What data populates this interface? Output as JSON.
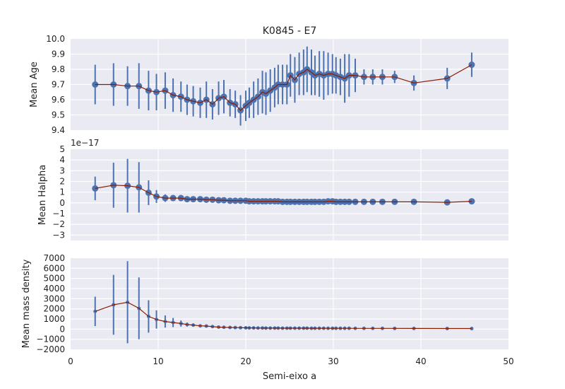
{
  "figure": {
    "title": "K0845 - E7",
    "xlabel": "Semi-eixo a",
    "xticks": [
      "0",
      "10",
      "20",
      "30",
      "40",
      "50"
    ]
  },
  "colors": {
    "panel_bg": "#EAEAF2",
    "grid": "#FFFFFF",
    "points": "#4C72B0",
    "line": "#8B1A00"
  },
  "chart_data": [
    {
      "type": "scatter",
      "ylabel": "Mean Age",
      "xlim": [
        0,
        50
      ],
      "ylim": [
        9.4,
        10.0
      ],
      "ytick_labels": [
        "9.4",
        "9.5",
        "9.6",
        "9.7",
        "9.8",
        "9.9",
        "10.0"
      ],
      "offset_label": "",
      "grid": true,
      "marker_size": "large",
      "x": [
        2.8,
        4.9,
        6.5,
        7.8,
        8.9,
        9.8,
        10.8,
        11.7,
        12.6,
        13.3,
        14.0,
        14.8,
        15.5,
        16.2,
        16.9,
        17.5,
        18.2,
        18.8,
        19.4,
        20.0,
        20.4,
        20.9,
        21.4,
        21.9,
        22.3,
        22.8,
        23.3,
        23.7,
        24.2,
        24.7,
        25.1,
        25.6,
        26.1,
        26.6,
        27.0,
        27.5,
        27.9,
        28.4,
        28.9,
        29.4,
        29.9,
        30.3,
        30.8,
        31.3,
        31.8,
        32.5,
        33.5,
        34.5,
        35.6,
        37.0,
        39.2,
        43.0,
        45.8
      ],
      "y": [
        9.7,
        9.7,
        9.69,
        9.69,
        9.66,
        9.65,
        9.66,
        9.63,
        9.62,
        9.6,
        9.59,
        9.58,
        9.6,
        9.57,
        9.61,
        9.62,
        9.58,
        9.57,
        9.53,
        9.56,
        9.58,
        9.6,
        9.62,
        9.65,
        9.64,
        9.66,
        9.68,
        9.7,
        9.7,
        9.7,
        9.76,
        9.73,
        9.77,
        9.78,
        9.8,
        9.78,
        9.76,
        9.77,
        9.76,
        9.77,
        9.77,
        9.76,
        9.75,
        9.74,
        9.76,
        9.76,
        9.75,
        9.75,
        9.75,
        9.75,
        9.71,
        9.74,
        9.83
      ],
      "err": [
        0.13,
        0.14,
        0.13,
        0.15,
        0.13,
        0.12,
        0.12,
        0.11,
        0.1,
        0.1,
        0.1,
        0.1,
        0.12,
        0.1,
        0.11,
        0.11,
        0.09,
        0.09,
        0.1,
        0.1,
        0.1,
        0.12,
        0.12,
        0.14,
        0.14,
        0.14,
        0.13,
        0.13,
        0.13,
        0.13,
        0.14,
        0.15,
        0.14,
        0.15,
        0.15,
        0.15,
        0.13,
        0.15,
        0.16,
        0.14,
        0.13,
        0.12,
        0.12,
        0.16,
        0.14,
        0.11,
        0.05,
        0.05,
        0.05,
        0.04,
        0.05,
        0.07,
        0.08
      ]
    },
    {
      "type": "scatter",
      "ylabel": "Mean Halpha",
      "xlim": [
        0,
        50
      ],
      "ylim": [
        -3.5,
        5
      ],
      "ytick_labels": [
        "−3",
        "−2",
        "−1",
        "0",
        "1",
        "2",
        "3",
        "4",
        "5"
      ],
      "offset_label": "1e−17",
      "grid": true,
      "marker_size": "large",
      "x": [
        2.8,
        4.9,
        6.5,
        7.8,
        8.9,
        9.8,
        10.8,
        11.7,
        12.6,
        13.3,
        14.0,
        14.8,
        15.5,
        16.2,
        16.9,
        17.5,
        18.2,
        18.8,
        19.4,
        20.0,
        20.4,
        20.9,
        21.4,
        21.9,
        22.3,
        22.8,
        23.3,
        23.7,
        24.2,
        24.7,
        25.1,
        25.6,
        26.1,
        26.6,
        27.0,
        27.5,
        27.9,
        28.4,
        28.9,
        29.4,
        29.9,
        30.3,
        30.8,
        31.3,
        31.8,
        32.5,
        33.5,
        34.5,
        35.6,
        37.0,
        39.2,
        43.0,
        45.8
      ],
      "y": [
        1.35,
        1.65,
        1.6,
        1.45,
        0.95,
        0.6,
        0.45,
        0.45,
        0.45,
        0.35,
        0.35,
        0.35,
        0.3,
        0.3,
        0.25,
        0.25,
        0.2,
        0.2,
        0.2,
        0.2,
        0.15,
        0.15,
        0.15,
        0.15,
        0.15,
        0.15,
        0.15,
        0.15,
        0.1,
        0.1,
        0.1,
        0.1,
        0.1,
        0.1,
        0.1,
        0.1,
        0.1,
        0.1,
        0.1,
        0.15,
        0.15,
        0.1,
        0.1,
        0.1,
        0.1,
        0.1,
        0.1,
        0.1,
        0.1,
        0.1,
        0.1,
        0.05,
        0.15
      ],
      "err": [
        1.1,
        2.1,
        2.5,
        2.35,
        1.15,
        0.6,
        0.35,
        0.25,
        0.2,
        0.1,
        0.1,
        0.1,
        0.1,
        0.1,
        0.1,
        0.1,
        0.1,
        0.1,
        0.1,
        0.1,
        0.1,
        0.1,
        0.1,
        0.1,
        0.1,
        0.1,
        0.1,
        0.1,
        0.1,
        0.1,
        0.1,
        0.1,
        0.1,
        0.1,
        0.1,
        0.1,
        0.1,
        0.1,
        0.1,
        0.1,
        0.1,
        0.1,
        0.1,
        0.1,
        0.1,
        0.1,
        0.05,
        0.05,
        0.05,
        0.05,
        0.05,
        0.05,
        0.05
      ]
    },
    {
      "type": "scatter",
      "ylabel": "Mean mass density",
      "xlim": [
        0,
        50
      ],
      "ylim": [
        -2000,
        7000
      ],
      "ytick_labels": [
        "−2000",
        "−1000",
        "0",
        "1000",
        "2000",
        "3000",
        "4000",
        "5000",
        "6000",
        "7000"
      ],
      "offset_label": "",
      "grid": true,
      "marker_size": "small",
      "x": [
        2.8,
        4.9,
        6.5,
        7.8,
        8.9,
        9.8,
        10.8,
        11.7,
        12.6,
        13.3,
        14.0,
        14.8,
        15.5,
        16.2,
        16.9,
        17.5,
        18.2,
        18.8,
        19.4,
        20.0,
        20.4,
        20.9,
        21.4,
        21.9,
        22.3,
        22.8,
        23.3,
        23.7,
        24.2,
        24.7,
        25.1,
        25.6,
        26.1,
        26.6,
        27.0,
        27.5,
        27.9,
        28.4,
        28.9,
        29.4,
        29.9,
        30.3,
        30.8,
        31.3,
        31.8,
        32.5,
        33.5,
        34.5,
        35.6,
        37.0,
        39.2,
        43.0,
        45.8
      ],
      "y": [
        1750,
        2400,
        2650,
        2050,
        1250,
        950,
        750,
        650,
        550,
        450,
        400,
        320,
        300,
        250,
        200,
        180,
        160,
        150,
        140,
        130,
        120,
        120,
        110,
        110,
        100,
        100,
        100,
        100,
        95,
        95,
        95,
        90,
        90,
        90,
        90,
        85,
        85,
        85,
        85,
        80,
        80,
        80,
        80,
        80,
        80,
        75,
        75,
        75,
        75,
        70,
        65,
        60,
        55
      ],
      "err": [
        1450,
        2950,
        4050,
        3050,
        1600,
        900,
        600,
        450,
        300,
        200,
        150,
        100,
        80,
        60,
        50,
        40,
        30,
        30,
        30,
        30,
        30,
        30,
        30,
        30,
        30,
        30,
        30,
        30,
        30,
        30,
        30,
        30,
        30,
        30,
        30,
        30,
        30,
        30,
        30,
        30,
        30,
        30,
        30,
        30,
        30,
        30,
        30,
        30,
        30,
        30,
        30,
        30,
        30
      ]
    }
  ]
}
